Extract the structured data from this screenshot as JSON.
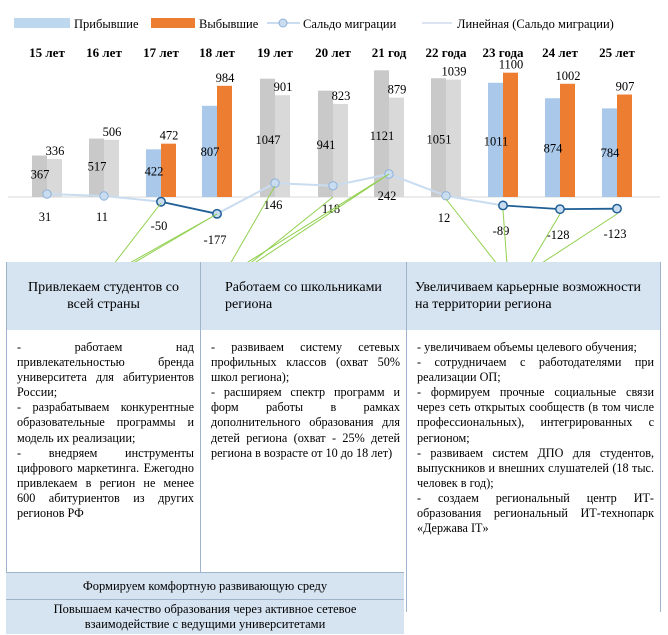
{
  "chart_data": {
    "type": "bar",
    "categories": [
      "15 лет",
      "16 лет",
      "17 лет",
      "18 лет",
      "19 лет",
      "20 лет",
      "21 год",
      "22 года",
      "23 года",
      "24 лет",
      "25 лет"
    ],
    "series": [
      {
        "name": "Прибывшие",
        "values": [
          367,
          517,
          422,
          807,
          1047,
          941,
          1121,
          1051,
          1011,
          874,
          784
        ]
      },
      {
        "name": "Выбывшие",
        "values": [
          336,
          506,
          472,
          984,
          901,
          823,
          879,
          1039,
          1100,
          1002,
          907
        ]
      },
      {
        "name": "Сальдо миграции",
        "values": [
          31,
          11,
          -50,
          -177,
          146,
          118,
          242,
          12,
          -89,
          -128,
          -123
        ]
      },
      {
        "name": "Линейная (Сальдо миграции)",
        "values": [
          31,
          11,
          -50,
          -177,
          146,
          118,
          242,
          12,
          -89,
          -128,
          -123
        ]
      }
    ],
    "legend_position": "top",
    "colors": {
      "arrived": "#bdd7ee",
      "arrived_highlight": "#a9c8ea",
      "departed": "#ed7d31",
      "departed_gray": "#d9d9d9",
      "arrived_gray": "#c9c9c9",
      "saldo_positive": "#c9dcf0",
      "saldo_negative": "#1f5e96",
      "arrow": "#92d050"
    }
  },
  "columns": [
    {
      "header": "Привлекаем студентов со всей страны",
      "items": [
        "- работаем над привлекательностью бренда университета для абитуриентов России;",
        "- разрабатываем конкурентные образовательные программы и модель их реализации;",
        "- внедряем инструменты цифрового маркетинга. Ежегодно привлекаем в регион не менее 600 абитуриентов из других регионов РФ"
      ]
    },
    {
      "header": "Работаем со школьниками региона",
      "items": [
        "- развиваем систему сетевых профильных классов (охват 50% школ региона);",
        "- расширяем спектр программ и форм работы в рамках дополнительного образования для детей региона (охват - 25% детей региона в возрасте от 10 до 18 лет)"
      ]
    },
    {
      "header": "Увеличиваем карьерные возможности на территории региона",
      "items": [
        "- увеличиваем объемы целевого обучения;",
        "- сотрудничаем с работодателями при реализации ОП;",
        "- формируем прочные социальные связи через сеть открытых сообществ (в том числе профессиональных), интегрированных с регионом;",
        "- развиваем систем ДПО для студентов, выпускников и внешних слушателей (18 тыс. человек в год);",
        "- создаем региональный центр ИТ-образования региональный ИТ-технопарк «Держава IT»"
      ]
    }
  ],
  "bottom": [
    "Формируем комфортную развивающую среду",
    "Повышаем качество образования через активное сетевое взаимодействие с ведущими университетами"
  ]
}
